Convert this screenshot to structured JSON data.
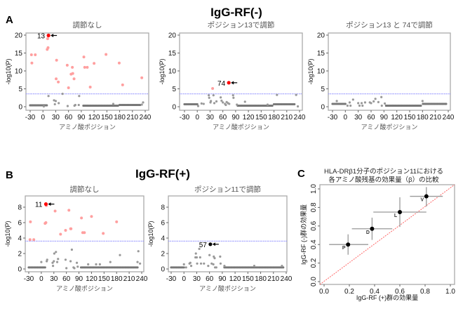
{
  "groups": {
    "A": {
      "letter": "A",
      "title": "IgG-RF(-)"
    },
    "B": {
      "letter": "B",
      "title": "IgG-RF(+)"
    },
    "C": {
      "letter": "C"
    }
  },
  "chart_data": [
    {
      "id": "a1",
      "type": "scatter",
      "title": "調節なし",
      "xlabel": "アミノ酸ポジション",
      "ylabel": "-log10(P)",
      "xlim": [
        -35,
        245
      ],
      "ylim": [
        -1,
        21
      ],
      "xticks": [
        "-30",
        "0",
        "30",
        "60",
        "90",
        "120",
        "150",
        "180",
        "210",
        "240"
      ],
      "yticks": [
        "0",
        "5",
        "10",
        "15",
        "20"
      ],
      "threshold": 3.6,
      "colors": {
        "significant": "#ff9999",
        "nonsignificant": "#888888",
        "highlight": "#ff0000",
        "threshold": "#9999ff"
      },
      "highlight": {
        "x": 13,
        "y": 19.9,
        "label": "13"
      },
      "significant": [
        [
          -27,
          14.5
        ],
        [
          -26,
          12.2
        ],
        [
          -18,
          14.5
        ],
        [
          10,
          16
        ],
        [
          11,
          19
        ],
        [
          12,
          16.5
        ],
        [
          32,
          13
        ],
        [
          31,
          7.8
        ],
        [
          36,
          6.9
        ],
        [
          57,
          11.6
        ],
        [
          60,
          5.3
        ],
        [
          66,
          9.1
        ],
        [
          69,
          11
        ],
        [
          70,
          9.3
        ],
        [
          73,
          7.8
        ],
        [
          96,
          13.9
        ],
        [
          98,
          11
        ],
        [
          104,
          11
        ],
        [
          111,
          5.5
        ],
        [
          120,
          12.1
        ],
        [
          148,
          14.6
        ],
        [
          179,
          12.2
        ],
        [
          187,
          6.1
        ],
        [
          232,
          8.1
        ]
      ],
      "nonsignificant": [
        [
          13,
          3
        ],
        [
          26,
          1.8
        ],
        [
          30,
          1.6
        ],
        [
          28,
          0.7
        ],
        [
          37,
          1
        ],
        [
          46,
          3.6
        ],
        [
          58,
          0.2
        ],
        [
          74,
          0.3
        ],
        [
          76,
          0.5
        ],
        [
          85,
          3
        ],
        [
          84,
          0.5
        ],
        [
          165,
          0.8
        ],
        [
          235,
          1.2
        ],
        [
          232,
          0.6
        ],
        [
          2,
          0.1
        ]
      ],
      "baseline_runs": [
        {
          "from": -30,
          "to": 10,
          "y": 0.4
        },
        {
          "from": 95,
          "to": 178,
          "y": 0.3
        },
        {
          "from": 180,
          "to": 230,
          "y": 0.5
        }
      ]
    },
    {
      "id": "a2",
      "type": "scatter",
      "title": "ポジション13で調節",
      "xlabel": "アミノ酸ポジション",
      "ylabel": "-log10(P)",
      "xlim": [
        -35,
        245
      ],
      "ylim": [
        -1,
        21
      ],
      "xticks": [
        "-30",
        "0",
        "30",
        "60",
        "90",
        "120",
        "150",
        "180",
        "210",
        "240"
      ],
      "yticks": [
        "0",
        "5",
        "10",
        "15",
        "20"
      ],
      "threshold": 3.6,
      "highlight": {
        "x": 74,
        "y": 6.7,
        "label": "74"
      },
      "significant": [
        [
          36,
          5.1
        ]
      ],
      "nonsignificant": [
        [
          10,
          0.9
        ],
        [
          15,
          0.8
        ],
        [
          27,
          3.2
        ],
        [
          28,
          2.5
        ],
        [
          31,
          1.2
        ],
        [
          32,
          1.6
        ],
        [
          38,
          3.2
        ],
        [
          40,
          1
        ],
        [
          45,
          1.5
        ],
        [
          55,
          2.6
        ],
        [
          57,
          1.7
        ],
        [
          60,
          1.2
        ],
        [
          65,
          0.8
        ],
        [
          67,
          0.5
        ],
        [
          69,
          1.3
        ],
        [
          72,
          1
        ],
        [
          75,
          0.8
        ],
        [
          84,
          3.2
        ],
        [
          85,
          2.5
        ],
        [
          93,
          0.6
        ],
        [
          112,
          1.4
        ],
        [
          165,
          0.6
        ],
        [
          187,
          3.3
        ],
        [
          232,
          3.3
        ],
        [
          236,
          0.1
        ],
        [
          2,
          0.2
        ]
      ],
      "baseline_runs": [
        {
          "from": -30,
          "to": 0,
          "y": 0.7
        },
        {
          "from": 95,
          "to": 178,
          "y": 0.3
        },
        {
          "from": 180,
          "to": 228,
          "y": 0.7
        }
      ]
    },
    {
      "id": "a3",
      "type": "scatter",
      "title": "ポジション13 と 74で調節",
      "xlabel": "アミノ酸ポジション",
      "ylabel": "-log10(P)",
      "xlim": [
        -35,
        245
      ],
      "ylim": [
        -1,
        21
      ],
      "xticks": [
        "-30",
        "0",
        "30",
        "60",
        "90",
        "120",
        "150",
        "180",
        "210",
        "240"
      ],
      "yticks": [
        "0",
        "5",
        "10",
        "15",
        "20"
      ],
      "threshold": 3.6,
      "significant": [],
      "nonsignificant": [
        [
          -20,
          1.6
        ],
        [
          5,
          0.3
        ],
        [
          10,
          1.2
        ],
        [
          12,
          0.3
        ],
        [
          18,
          2
        ],
        [
          30,
          1
        ],
        [
          33,
          0.3
        ],
        [
          38,
          1
        ],
        [
          40,
          0.3
        ],
        [
          46,
          1.2
        ],
        [
          57,
          1.2
        ],
        [
          60,
          1
        ],
        [
          66,
          1.5
        ],
        [
          70,
          2.2
        ],
        [
          77,
          1.3
        ],
        [
          84,
          2.7
        ],
        [
          85,
          0.3
        ],
        [
          92,
          0.9
        ],
        [
          180,
          1.6
        ]
      ],
      "baseline_runs": [
        {
          "from": -30,
          "to": 0,
          "y": 0.8
        },
        {
          "from": 95,
          "to": 178,
          "y": 0.3
        },
        {
          "from": 181,
          "to": 235,
          "y": 0.8
        }
      ]
    },
    {
      "id": "b1",
      "type": "scatter",
      "title": "調節なし",
      "xlabel": "アミノ酸ポジション",
      "ylabel": "-log10(P)",
      "xlim": [
        -35,
        245
      ],
      "ylim": [
        -0.3,
        9.3
      ],
      "xticks": [
        "-30",
        "0",
        "30",
        "60",
        "90",
        "120",
        "150",
        "180",
        "210",
        "240"
      ],
      "yticks": [
        "0",
        "2",
        "4",
        "6",
        "8"
      ],
      "threshold": 3.6,
      "highlight": {
        "x": 11,
        "y": 8.4,
        "label": "11"
      },
      "significant": [
        [
          -26,
          6.1
        ],
        [
          -27,
          3.8
        ],
        [
          -18,
          3.8
        ],
        [
          9,
          5.9
        ],
        [
          11,
          6
        ],
        [
          12,
          8.2
        ],
        [
          33,
          7.5
        ],
        [
          46,
          4.5
        ],
        [
          58,
          5
        ],
        [
          66,
          7.6
        ],
        [
          70,
          5.2
        ],
        [
          71,
          5.2
        ],
        [
          96,
          6.6
        ],
        [
          99,
          4.7
        ],
        [
          103,
          4.7
        ],
        [
          120,
          6.8
        ],
        [
          148,
          4.6
        ],
        [
          180,
          6.1
        ]
      ],
      "nonsignificant": [
        [
          0,
          0.9
        ],
        [
          14,
          1.2
        ],
        [
          13,
          1
        ],
        [
          27,
          0.8
        ],
        [
          28,
          0.4
        ],
        [
          30,
          1
        ],
        [
          31,
          2
        ],
        [
          35,
          2.2
        ],
        [
          38,
          0.9
        ],
        [
          40,
          1.3
        ],
        [
          58,
          1.2
        ],
        [
          60,
          0.1
        ],
        [
          70,
          1
        ],
        [
          73,
          2.5
        ],
        [
          77,
          0.2
        ],
        [
          79,
          0.1
        ],
        [
          85,
          0.8
        ],
        [
          87,
          0.3
        ],
        [
          112,
          0.6
        ],
        [
          131,
          0.6
        ],
        [
          140,
          0.6
        ],
        [
          165,
          0.9
        ],
        [
          188,
          1.8
        ],
        [
          230,
          0.9
        ],
        [
          232,
          2.3
        ],
        [
          236,
          0.7
        ]
      ],
      "baseline_runs": [
        {
          "from": -30,
          "to": 10,
          "y": 0.2
        },
        {
          "from": 95,
          "to": 230,
          "y": 0.2
        }
      ]
    },
    {
      "id": "b2",
      "type": "scatter",
      "title": "ポジション11で調節",
      "xlabel": "アミノ酸ポジション",
      "ylabel": "-log10(P)",
      "xlim": [
        -35,
        245
      ],
      "ylim": [
        -0.3,
        9.3
      ],
      "xticks": [
        "-30",
        "0",
        "30",
        "60",
        "90",
        "120",
        "150",
        "180",
        "210",
        "240"
      ],
      "yticks": [
        "0",
        "2",
        "4",
        "6",
        "8"
      ],
      "threshold": 3.6,
      "highlight": {
        "x": 62,
        "y": 3.2,
        "label": "57",
        "color": "#000000"
      },
      "significant": [],
      "nonsignificant": [
        [
          0,
          0.6
        ],
        [
          5,
          0.2
        ],
        [
          13,
          0.7
        ],
        [
          15,
          0.8
        ],
        [
          17,
          0.4
        ],
        [
          27,
          1.5
        ],
        [
          28,
          2
        ],
        [
          30,
          1.5
        ],
        [
          31,
          0.7
        ],
        [
          36,
          2.6
        ],
        [
          38,
          1.5
        ],
        [
          40,
          0.7
        ],
        [
          47,
          0.7
        ],
        [
          57,
          0.4
        ],
        [
          60,
          1.8
        ],
        [
          65,
          0.7
        ],
        [
          69,
          0.6
        ],
        [
          70,
          1.6
        ],
        [
          72,
          1.4
        ],
        [
          73,
          0.2
        ],
        [
          76,
          0.2
        ],
        [
          85,
          1.6
        ],
        [
          86,
          0.7
        ],
        [
          95,
          0.4
        ],
        [
          165,
          0.4
        ],
        [
          230,
          0.4
        ]
      ],
      "baseline_runs": [
        {
          "from": -30,
          "to": 0,
          "y": 0.2
        },
        {
          "from": 95,
          "to": 235,
          "y": 0.2
        }
      ]
    },
    {
      "id": "c",
      "type": "scatter",
      "title": [
        "HLA-DRβ1分子のポジション11における",
        "各アミノ酸残基の効果量（β）の比較"
      ],
      "xlabel": "IgG-RF (+)群の効果量",
      "ylabel": "IgG-RF (-)群の効果量",
      "xlim": [
        -0.03,
        1.03
      ],
      "ylim": [
        -0.03,
        1.03
      ],
      "xticks": [
        "0.0",
        "0.2",
        "0.4",
        "0.6",
        "0.8",
        "1.0"
      ],
      "yticks": [
        "0.0",
        "0.2",
        "0.4",
        "0.6",
        "0.8",
        "1.0"
      ],
      "identity_line": true,
      "identity_color": "#ff6666",
      "points": [
        {
          "label": "P",
          "x": 0.19,
          "y": 0.4,
          "x_err": [
            0.04,
            0.35
          ],
          "y_err": [
            0.29,
            0.51
          ]
        },
        {
          "label": "D",
          "x": 0.38,
          "y": 0.57,
          "x_err": [
            0.22,
            0.54
          ],
          "y_err": [
            0.45,
            0.69
          ]
        },
        {
          "label": "L",
          "x": 0.6,
          "y": 0.75,
          "x_err": [
            0.39,
            0.81
          ],
          "y_err": [
            0.59,
            0.91
          ]
        },
        {
          "label": "V",
          "x": 0.81,
          "y": 0.92,
          "x_err": [
            0.68,
            0.94
          ],
          "y_err": [
            0.81,
            1.02
          ]
        }
      ]
    }
  ]
}
